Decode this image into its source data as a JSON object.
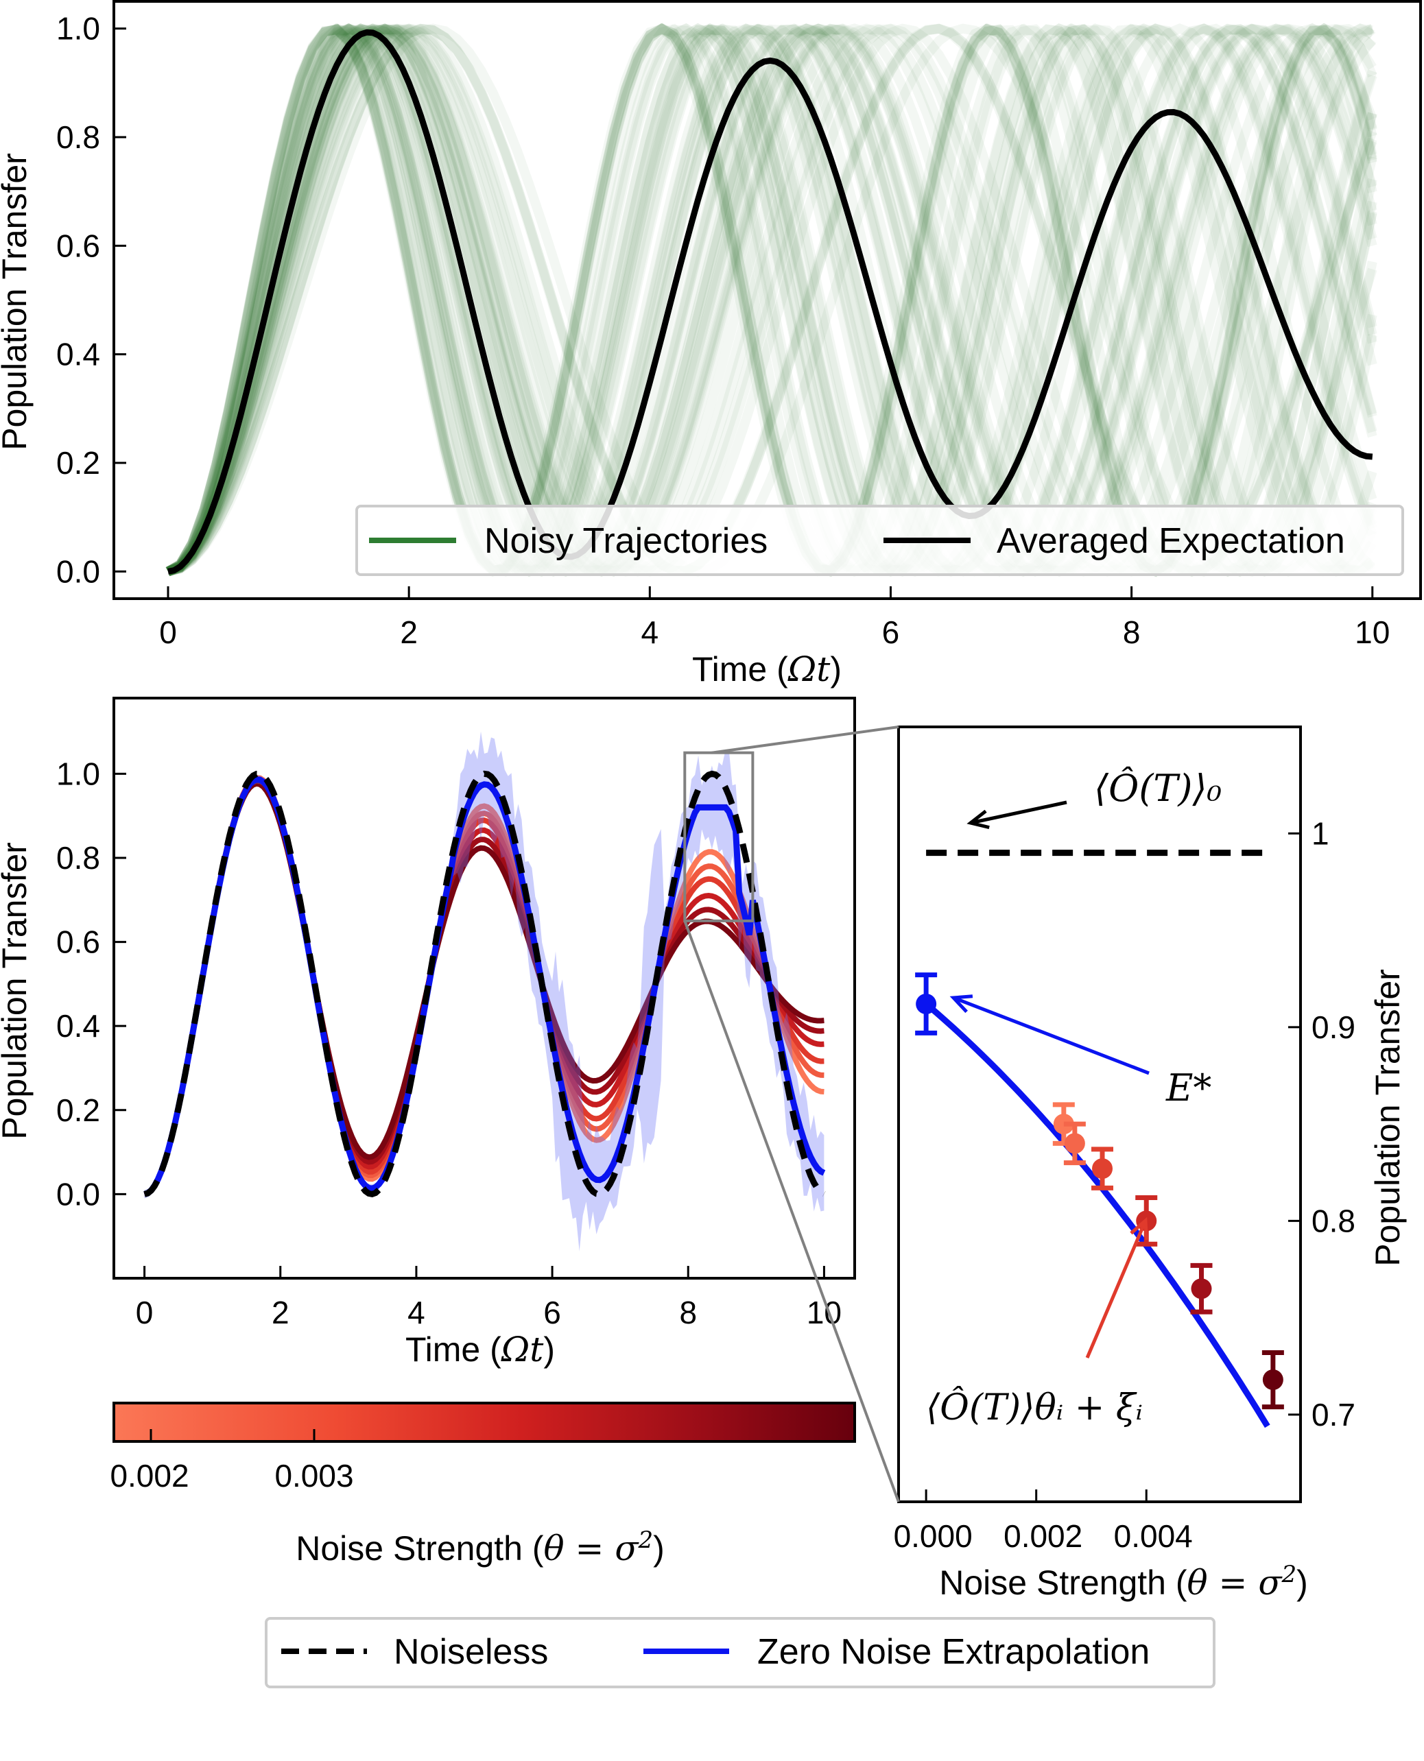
{
  "chart_data": [
    {
      "type": "line",
      "xlabel": "Time (Ωt)",
      "ylabel": "Population Transfer",
      "xlim": [
        -0.45,
        10.4
      ],
      "ylim": [
        -0.05,
        1.05
      ],
      "xticks": [
        "0",
        "2",
        "4",
        "6",
        "8",
        "10"
      ],
      "yticks": [
        "0.0",
        "0.2",
        "0.4",
        "0.6",
        "0.8",
        "1.0"
      ],
      "series": [
        {
          "name": "Noisy Trajectories",
          "color": "#2e7d32",
          "note_count": 60
        },
        {
          "name": "Averaged Expectation",
          "color": "#000000",
          "peaks": [
            [
              1.65,
              0.99
            ],
            [
              5.0,
              0.945
            ],
            [
              8.35,
              0.87
            ]
          ],
          "troughs": [
            [
              3.3,
              0.02
            ],
            [
              6.65,
              0.09
            ]
          ],
          "end": [
            10,
            0.18
          ]
        }
      ],
      "legend": [
        "Noisy Trajectories",
        "Averaged Expectation"
      ],
      "legend_position": "lower right"
    },
    {
      "type": "line",
      "xlabel": "Time (Ωt)",
      "ylabel": "Population Transfer",
      "xlim": [
        -0.45,
        10.45
      ],
      "ylim": [
        -0.2,
        1.18
      ],
      "xticks": [
        "0",
        "2",
        "4",
        "6",
        "8",
        "10"
      ],
      "yticks": [
        "0.0",
        "0.2",
        "0.4",
        "0.6",
        "0.8",
        "1.0"
      ],
      "series": [
        {
          "name": "Noiseless",
          "color": "#000000",
          "style": "dashed"
        },
        {
          "name": "Zero Noise Extrapolation",
          "color": "#0a14f0"
        }
      ],
      "noise_peak3_values": [
        0.81,
        0.79,
        0.77,
        0.74,
        0.72,
        0.7
      ],
      "inset_box": {
        "x": [
          7.95,
          8.95
        ],
        "y": [
          0.65,
          1.05
        ]
      }
    },
    {
      "type": "colorbar",
      "label": "Noise Strength (θ = σ²)",
      "ticks": [
        "0.002",
        "0.003"
      ],
      "cmap": [
        "#fb7756",
        "#e8392a",
        "#c0141d",
        "#8a0a17",
        "#67000d"
      ]
    },
    {
      "type": "scatter",
      "xlabel": "Noise Strength (θ = σ²)",
      "ylabel": "Population Transfer",
      "xlim": [
        -0.0005,
        0.0068
      ],
      "ylim": [
        0.655,
        1.055
      ],
      "xticks": [
        "0.000",
        "0.002",
        "0.004"
      ],
      "yticks": [
        "0.7",
        "0.8",
        "0.9",
        "1"
      ],
      "noiseless_value": 0.99,
      "extrapolated": {
        "x": 0.0,
        "y": 0.912,
        "err": 0.015,
        "color": "#0a14f0"
      },
      "points": [
        {
          "x": 0.0025,
          "y": 0.85,
          "err": 0.01,
          "color": "#fb7756"
        },
        {
          "x": 0.0027,
          "y": 0.84,
          "err": 0.01,
          "color": "#f4664a"
        },
        {
          "x": 0.0032,
          "y": 0.827,
          "err": 0.01,
          "color": "#e0412f"
        },
        {
          "x": 0.004,
          "y": 0.8,
          "err": 0.012,
          "color": "#cd2a24"
        },
        {
          "x": 0.005,
          "y": 0.765,
          "err": 0.012,
          "color": "#a0101a"
        },
        {
          "x": 0.0063,
          "y": 0.718,
          "err": 0.014,
          "color": "#67000d"
        }
      ],
      "annotations": {
        "noiseless": "⟨Ô(T)⟩₀",
        "extrapolated": "E*",
        "measured": "⟨Ô(T)⟩θᵢ + ξᵢ"
      }
    }
  ],
  "legend_bottom": [
    "Noiseless",
    "Zero Noise Extrapolation"
  ]
}
